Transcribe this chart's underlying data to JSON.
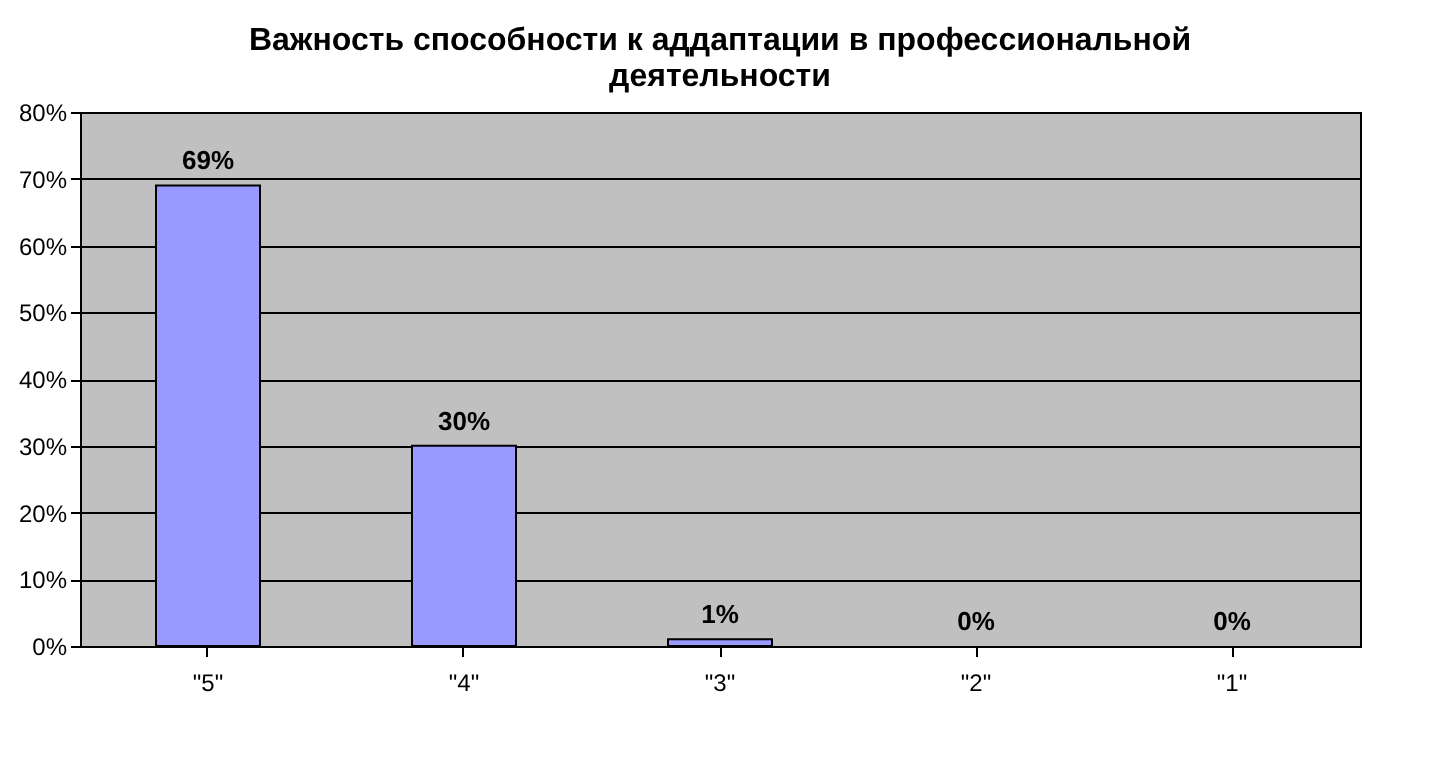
{
  "chart_data": {
    "type": "bar",
    "title": "Важность способности к аддаптации в профессиональной деятельности",
    "categories": [
      "\"5\"",
      "\"4\"",
      "\"3\"",
      "\"2\"",
      "\"1\""
    ],
    "values": [
      69,
      30,
      1,
      0,
      0
    ],
    "value_labels": [
      "69%",
      "30%",
      "1%",
      "0%",
      "0%"
    ],
    "color": "#9999ff",
    "ylim": [
      0,
      80
    ],
    "yticks": [
      {
        "value": 0,
        "label": "0%"
      },
      {
        "value": 10,
        "label": "10%"
      },
      {
        "value": 20,
        "label": "20%"
      },
      {
        "value": 30,
        "label": "30%"
      },
      {
        "value": 40,
        "label": "40%"
      },
      {
        "value": 50,
        "label": "50%"
      },
      {
        "value": 60,
        "label": "60%"
      },
      {
        "value": 70,
        "label": "70%"
      },
      {
        "value": 80,
        "label": "80%"
      }
    ],
    "grid": "y"
  }
}
